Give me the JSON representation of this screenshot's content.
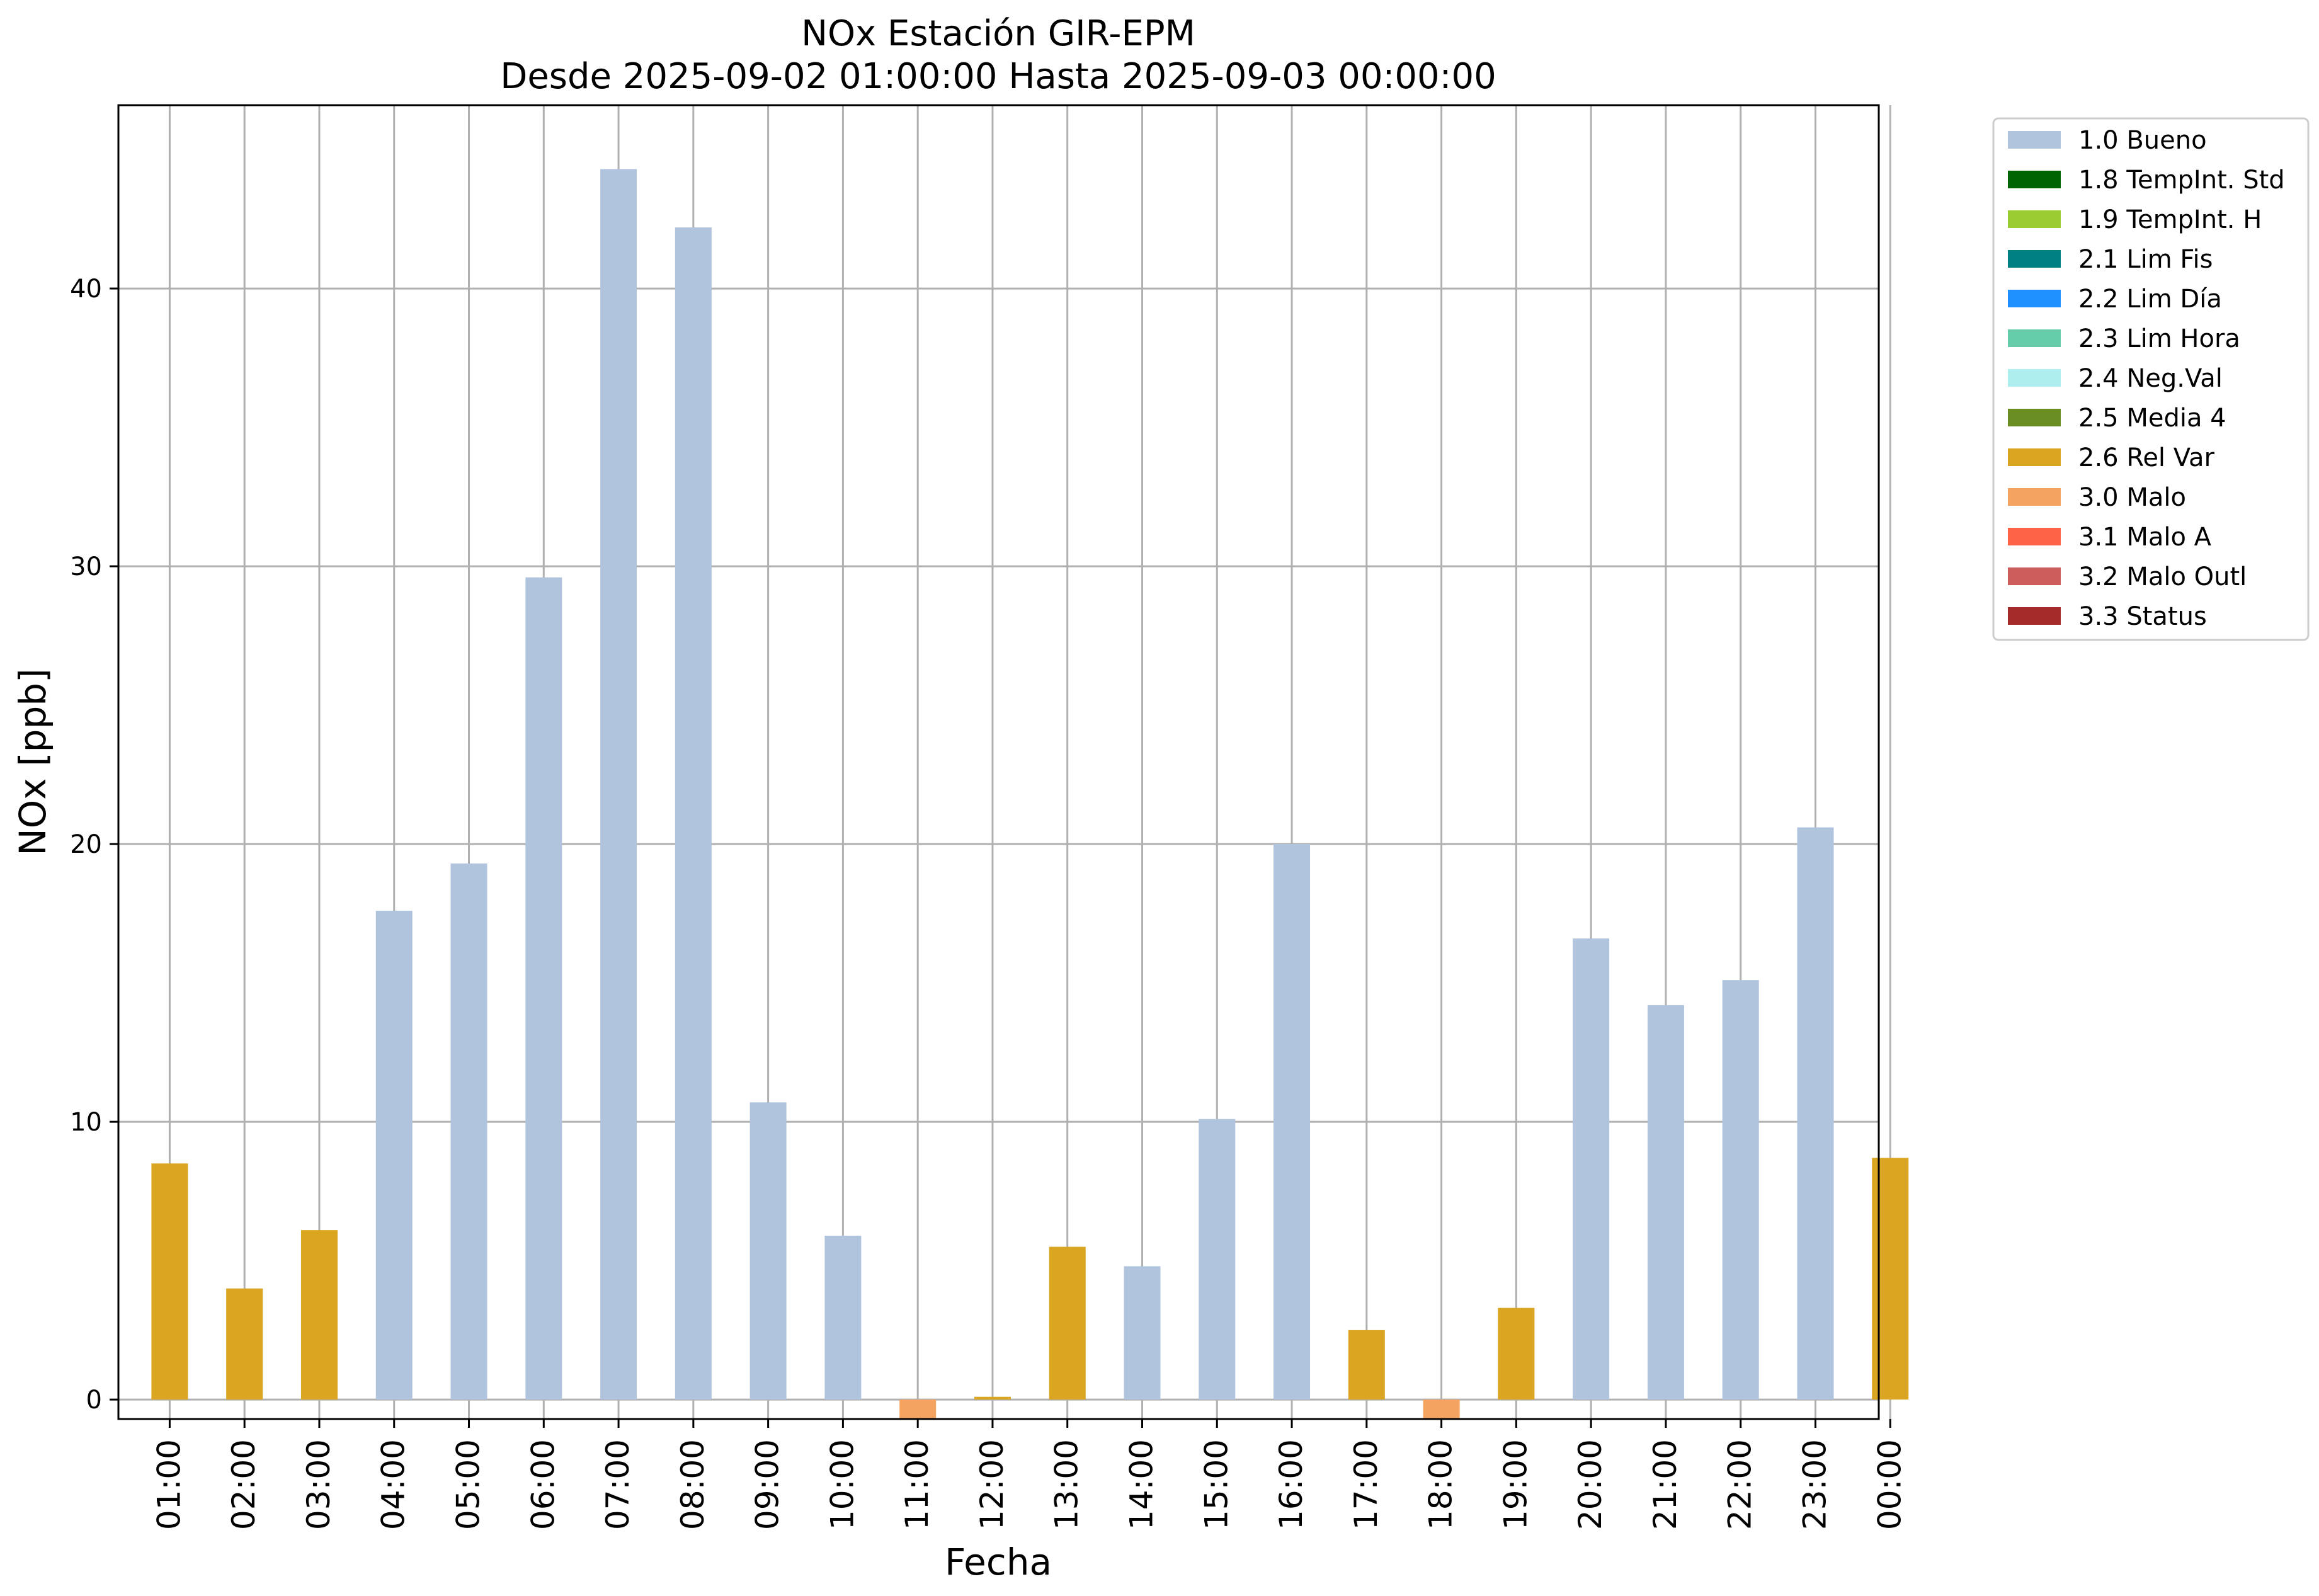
{
  "chart_data": {
    "type": "bar",
    "title": "NOx Estación GIR-EPM",
    "subtitle": "Desde 2025-09-02 01:00:00 Hasta 2025-09-03 00:00:00",
    "xlabel": "Fecha",
    "ylabel": "NOx [ppb]",
    "ylim": [
      -0.7,
      46.6
    ],
    "yticks": [
      "0",
      "10",
      "20",
      "30",
      "40"
    ],
    "grid": true,
    "legend_position": "outside-top-right",
    "categories": [
      "01:00",
      "02:00",
      "03:00",
      "04:00",
      "05:00",
      "06:00",
      "07:00",
      "08:00",
      "09:00",
      "10:00",
      "11:00",
      "12:00",
      "13:00",
      "14:00",
      "15:00",
      "16:00",
      "17:00",
      "18:00",
      "19:00",
      "20:00",
      "21:00",
      "22:00",
      "23:00",
      "00:00"
    ],
    "values": [
      8.5,
      4.0,
      6.1,
      17.6,
      19.3,
      29.6,
      44.3,
      42.2,
      10.7,
      5.9,
      -0.7,
      0.1,
      5.5,
      4.8,
      10.1,
      20.0,
      2.5,
      -0.7,
      3.3,
      16.6,
      14.2,
      15.1,
      20.6,
      8.7
    ],
    "flags": [
      "2.6 Rel Var",
      "2.6 Rel Var",
      "2.6 Rel Var",
      "1.0 Bueno",
      "1.0 Bueno",
      "1.0 Bueno",
      "1.0 Bueno",
      "1.0 Bueno",
      "1.0 Bueno",
      "1.0 Bueno",
      "3.0 Malo",
      "2.6 Rel Var",
      "2.6 Rel Var",
      "1.0 Bueno",
      "1.0 Bueno",
      "1.0 Bueno",
      "2.6 Rel Var",
      "3.0 Malo",
      "2.6 Rel Var",
      "1.0 Bueno",
      "1.0 Bueno",
      "1.0 Bueno",
      "1.0 Bueno",
      "2.6 Rel Var"
    ],
    "legend": [
      {
        "label": "1.0 Bueno",
        "color": "#b0c4de"
      },
      {
        "label": "1.8 TempInt. Std",
        "color": "#006400"
      },
      {
        "label": "1.9 TempInt. H",
        "color": "#9acd32"
      },
      {
        "label": "2.1 Lim Fis",
        "color": "#008080"
      },
      {
        "label": "2.2 Lim Día",
        "color": "#1e90ff"
      },
      {
        "label": "2.3 Lim Hora",
        "color": "#66cdaa"
      },
      {
        "label": "2.4 Neg.Val",
        "color": "#afeeee"
      },
      {
        "label": "2.5 Media 4",
        "color": "#6b8e23"
      },
      {
        "label": "2.6 Rel Var",
        "color": "#daa520"
      },
      {
        "label": "3.0 Malo",
        "color": "#f4a460"
      },
      {
        "label": "3.1 Malo A",
        "color": "#ff6347"
      },
      {
        "label": "3.2 Malo Outl",
        "color": "#cd5c5c"
      },
      {
        "label": "3.3 Status",
        "color": "#a52a2a"
      }
    ]
  }
}
